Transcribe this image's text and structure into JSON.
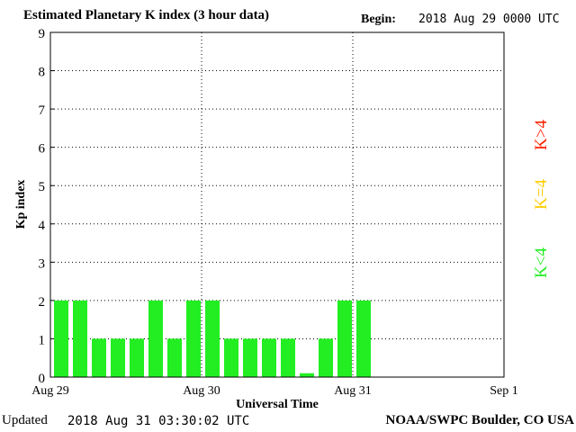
{
  "header": {
    "title": "Estimated Planetary K index (3 hour data)",
    "begin_label": "Begin:",
    "begin_value": "2018 Aug 29 0000 UTC"
  },
  "footer": {
    "updated_label": "Updated",
    "updated_value": "2018 Aug 31 03:30:02 UTC",
    "source": "NOAA/SWPC Boulder, CO USA"
  },
  "legend": {
    "high": "K>4",
    "equal": "K=4",
    "low": "K<4"
  },
  "colors": {
    "low": "#22ee22",
    "equal": "#ffcc00",
    "high": "#ff2200"
  },
  "chart_data": {
    "type": "bar",
    "title": "Estimated Planetary K index (3 hour data)",
    "xlabel": "Universal Time",
    "ylabel": "Kp index",
    "ylim": [
      0,
      9
    ],
    "yticks": [
      0,
      1,
      2,
      3,
      4,
      5,
      6,
      7,
      8,
      9
    ],
    "xticks": [
      "Aug 29",
      "Aug 30",
      "Aug 31",
      "Sep 1"
    ],
    "bins_per_day": 8,
    "grid": true,
    "series": [
      {
        "values": [
          2,
          2,
          1,
          1,
          1,
          2,
          1,
          2,
          2,
          1,
          1,
          1,
          1,
          0.1,
          1,
          2,
          2
        ]
      }
    ]
  }
}
